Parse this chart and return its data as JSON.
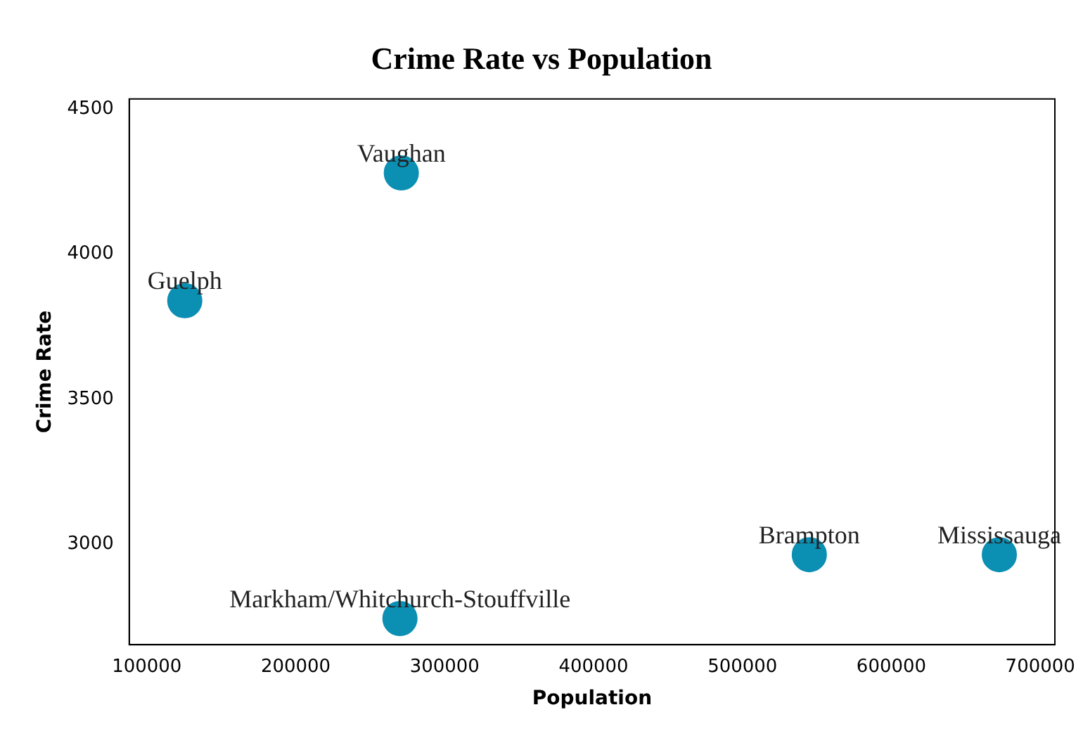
{
  "chart_data": {
    "type": "scatter",
    "title": "Crime Rate vs Population",
    "xlabel": "Population",
    "ylabel": "Crime Rate",
    "x": [
      125500,
      270900,
      270000,
      544900,
      672500
    ],
    "values": [
      3840,
      4280,
      2745,
      2965,
      2965
    ],
    "color": "#0b8fb3",
    "marker": "circle",
    "grid": false,
    "legend": false,
    "xlim": [
      88200,
      709800
    ],
    "ylim": [
      2655,
      4535
    ],
    "xticks": [
      100000,
      200000,
      300000,
      400000,
      500000,
      600000,
      700000
    ],
    "yticks": [
      3000,
      3500,
      4000,
      4500
    ],
    "annotations": [
      {
        "text": "Guelph",
        "x": 125500,
        "y": 3840
      },
      {
        "text": "Vaughan",
        "x": 270900,
        "y": 4280
      },
      {
        "text": "Markham/Whitchurch-Stouffville",
        "x": 270000,
        "y": 2745
      },
      {
        "text": "Brampton",
        "x": 544900,
        "y": 2965
      },
      {
        "text": "Mississauga",
        "x": 672500,
        "y": 2965
      }
    ]
  }
}
